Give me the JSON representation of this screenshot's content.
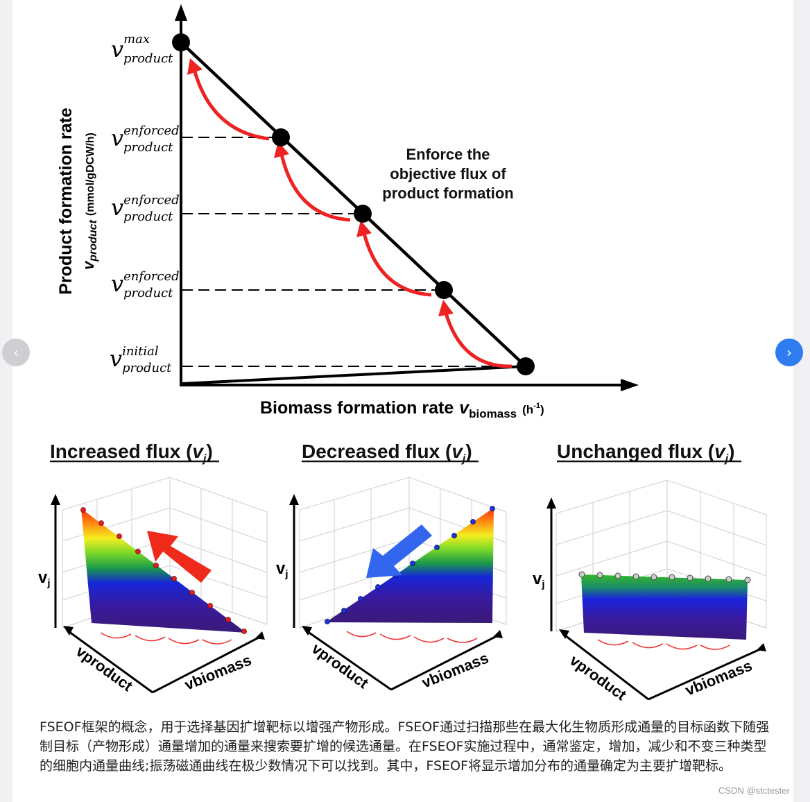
{
  "colors": {
    "accent": "#2f7bf0",
    "arrow_red": "#ee2222",
    "arrow_blue": "#3366ee"
  },
  "figure": {
    "top_chart": {
      "y_axis_title": "Product formation rate",
      "y_axis_symbol": "v",
      "y_axis_subscript": "product",
      "y_axis_units": "(mmol/gDCW/h)",
      "x_axis_title": "Biomass formation rate",
      "x_axis_symbol": "v",
      "x_axis_subscript": "biomass",
      "x_axis_units": "(h",
      "x_axis_units_exp": "-1",
      "x_axis_units_close": ")",
      "tick_symbol": "v",
      "tick_labels": [
        {
          "sup": "max",
          "sub": "product"
        },
        {
          "sup": "enforced",
          "sub": "product"
        },
        {
          "sup": "enforced",
          "sub": "product"
        },
        {
          "sup": "enforced",
          "sub": "product"
        },
        {
          "sup": "initial",
          "sub": "product"
        }
      ],
      "annotation": [
        "Enforce the",
        "objective flux of",
        "product formation"
      ]
    },
    "panels": [
      {
        "title": "Increased flux (",
        "var": "v",
        "sub": "j",
        "close": ")",
        "z_label": "v",
        "z_sub": "j",
        "x_label": "vproduct",
        "y_label": "vbiomass"
      },
      {
        "title": "Decreased flux (",
        "var": "v",
        "sub": "j",
        "close": ")",
        "z_label": "v",
        "z_sub": "j",
        "x_label": "vproduct",
        "y_label": "vbiomass"
      },
      {
        "title": "Unchanged flux (",
        "var": "v",
        "sub": "j",
        "close": ")",
        "z_label": "v",
        "z_sub": "j",
        "x_label": "vproduct",
        "y_label": "vbiomass"
      }
    ]
  },
  "nav": {
    "prev_icon": "‹",
    "next_icon": "›"
  },
  "caption": "FSEOF框架的概念，用于选择基因扩增靶标以增强产物形成。FSEOF通过扫描那些在最大化生物质形成通量的目标函数下随强制目标（产物形成）通量增加的通量来搜索要扩增的候选通量。在FSEOF实施过程中，通常鉴定，增加，减少和不变三种类型的细胞内通量曲线;振荡磁通曲线在极少数情况下可以找到。其中，FSEOF将显示增加分布的通量确定为主要扩增靶标。",
  "watermark": "CSDN @stctester"
}
